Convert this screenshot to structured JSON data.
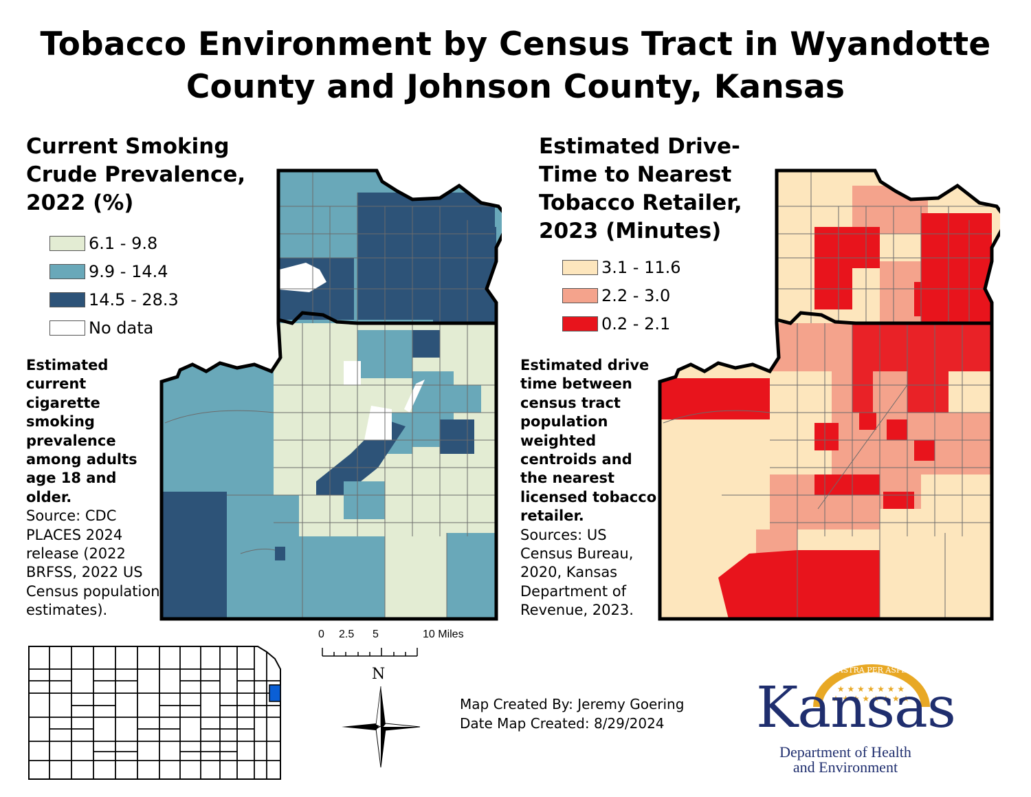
{
  "title": "Tobacco Environment by Census Tract in Wyandotte\nCounty and Johnson County, Kansas",
  "left_panel": {
    "title": "Current Smoking\nCrude Prevalence,\n2022 (%)",
    "legend": [
      {
        "label": "6.1 - 9.8",
        "color": "#e3ecd3"
      },
      {
        "label": "9.9 - 14.4",
        "color": "#69a8b9"
      },
      {
        "label": "14.5 - 28.3",
        "color": "#2d5378"
      },
      {
        "label": "No data",
        "color": "#ffffff"
      }
    ],
    "description_bold": "Estimated\ncurrent\ncigarette\nsmoking\nprevalence\namong adults\nage 18 and\nolder.",
    "description_source": "Source: CDC\nPLACES 2024\nrelease (2022\nBRFSS, 2022 US\nCensus  population\nestimates)."
  },
  "right_panel": {
    "title": "Estimated Drive-\nTime to Nearest\nTobacco Retailer,\n2023 (Minutes)",
    "legend": [
      {
        "label": "3.1 - 11.6",
        "color": "#fde6bd"
      },
      {
        "label": "2.2 - 3.0",
        "color": "#f4a38c"
      },
      {
        "label": "0.2 - 2.1",
        "color": "#e8141c"
      }
    ],
    "description_bold": "Estimated drive\ntime between\ncensus tract\npopulation\nweighted\ncentroids and\nthe nearest\nlicensed tobacco\nretailer.",
    "description_source": "Sources: US\nCensus Bureau,\n2020, Kansas\nDepartment of\nRevenue, 2023."
  },
  "scale_bar": {
    "labels": [
      "0",
      "2.5",
      "5",
      "10 Miles"
    ]
  },
  "north_arrow": {
    "label": "N"
  },
  "credit": "Map Created By: Jeremy Goering\nDate Map Created: 8/29/2024",
  "locator_map": {
    "highlight_color": "#0a5fd6"
  },
  "logo": {
    "motto": "AD ASTRA PER ASPERA",
    "name": "Kansas",
    "department": "Department of Health\nand Environment",
    "motto_color": "#e8a824",
    "name_color": "#1f2e6e"
  }
}
